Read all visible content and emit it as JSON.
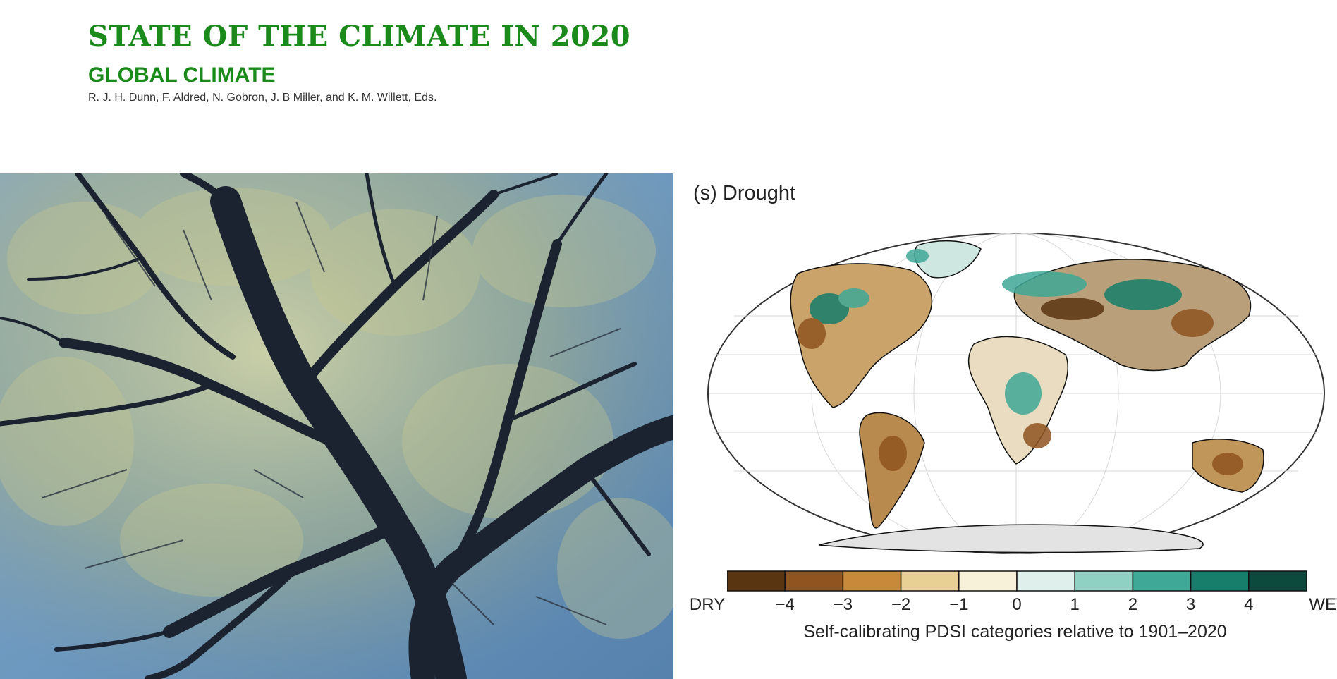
{
  "header": {
    "title": "STATE OF THE CLIMATE IN 2020",
    "subtitle": "GLOBAL CLIMATE",
    "authors": "R. J. H. Dunn, F. Aldred, N. Gobron, J. B Miller, and K. M. Willett, Eds."
  },
  "figure": {
    "panel_label": "(s) Drought",
    "colorbar": {
      "dry_label": "DRY",
      "wet_label": "WET",
      "ticks": [
        "−4",
        "−3",
        "−2",
        "−1",
        "0",
        "1",
        "2",
        "3",
        "4"
      ],
      "colors": [
        "#5a3511",
        "#8f5420",
        "#c88a3a",
        "#e8cf93",
        "#f7f1d9",
        "#dff0ec",
        "#8fd1c3",
        "#3fa896",
        "#167e6a",
        "#0b4a3c"
      ],
      "caption": "Self-calibrating PDSI categories relative to 1901–2020"
    }
  }
}
